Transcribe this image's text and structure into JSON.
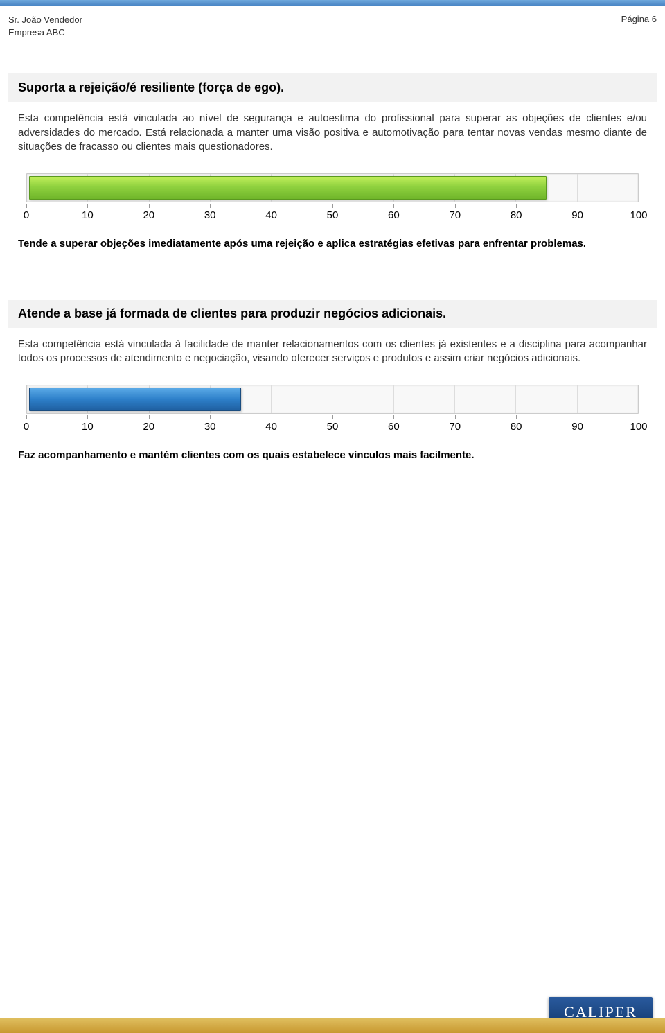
{
  "header": {
    "name": "Sr. João Vendedor",
    "company": "Empresa ABC",
    "page_label": "Página 6"
  },
  "sections": [
    {
      "title": "Suporta a rejeição/é resiliente (força de ego).",
      "description": "Esta competência está vinculada ao nível de segurança e autoestima do profissional para superar as objeções de clientes e/ou adversidades do mercado. Está relacionada a manter uma visão positiva e automotivação para tentar novas vendas mesmo diante de situações de fracasso ou clientes mais questionadores.",
      "chart": {
        "type": "bar",
        "value": 85,
        "xlim": [
          0,
          100
        ],
        "ticks": [
          0,
          10,
          20,
          30,
          40,
          50,
          60,
          70,
          80,
          90,
          100
        ],
        "fill_color_class": "green",
        "fill_gradient": [
          "#c0ee5a",
          "#8fd13f",
          "#6fb52a"
        ],
        "track_bg": "#f8f8f8",
        "segment_border": "#dddddd",
        "label_fontsize": 15,
        "label_color": "#000000"
      },
      "result": "Tende a superar objeções imediatamente após uma rejeição e aplica estratégias efetivas para enfrentar problemas."
    },
    {
      "title": "Atende a base já formada de clientes para produzir negócios adicionais.",
      "description": "Esta competência está vinculada à facilidade de manter relacionamentos com os clientes já existentes e a disciplina para acompanhar todos os processos de atendimento e negociação, visando oferecer serviços e produtos e assim criar negócios adicionais.",
      "chart": {
        "type": "bar",
        "value": 35,
        "xlim": [
          0,
          100
        ],
        "ticks": [
          0,
          10,
          20,
          30,
          40,
          50,
          60,
          70,
          80,
          90,
          100
        ],
        "fill_color_class": "blue",
        "fill_gradient": [
          "#5aa9e6",
          "#2d7fc9",
          "#1f5fa0"
        ],
        "track_bg": "#f8f8f8",
        "segment_border": "#dddddd",
        "label_fontsize": 15,
        "label_color": "#000000"
      },
      "result": "Faz acompanhamento e mantém clientes com os quais estabelece vínculos mais facilmente."
    }
  ],
  "logo_text": "CALIPER",
  "colors": {
    "top_bar_from": "#6fa8dc",
    "top_bar_to": "#4a86c5",
    "section_band_bg": "#f2f2f2",
    "bottom_bar_from": "#e0c060",
    "bottom_bar_to": "#c89830",
    "logo_bg_from": "#2a5a9e",
    "logo_bg_to": "#123a6e"
  }
}
